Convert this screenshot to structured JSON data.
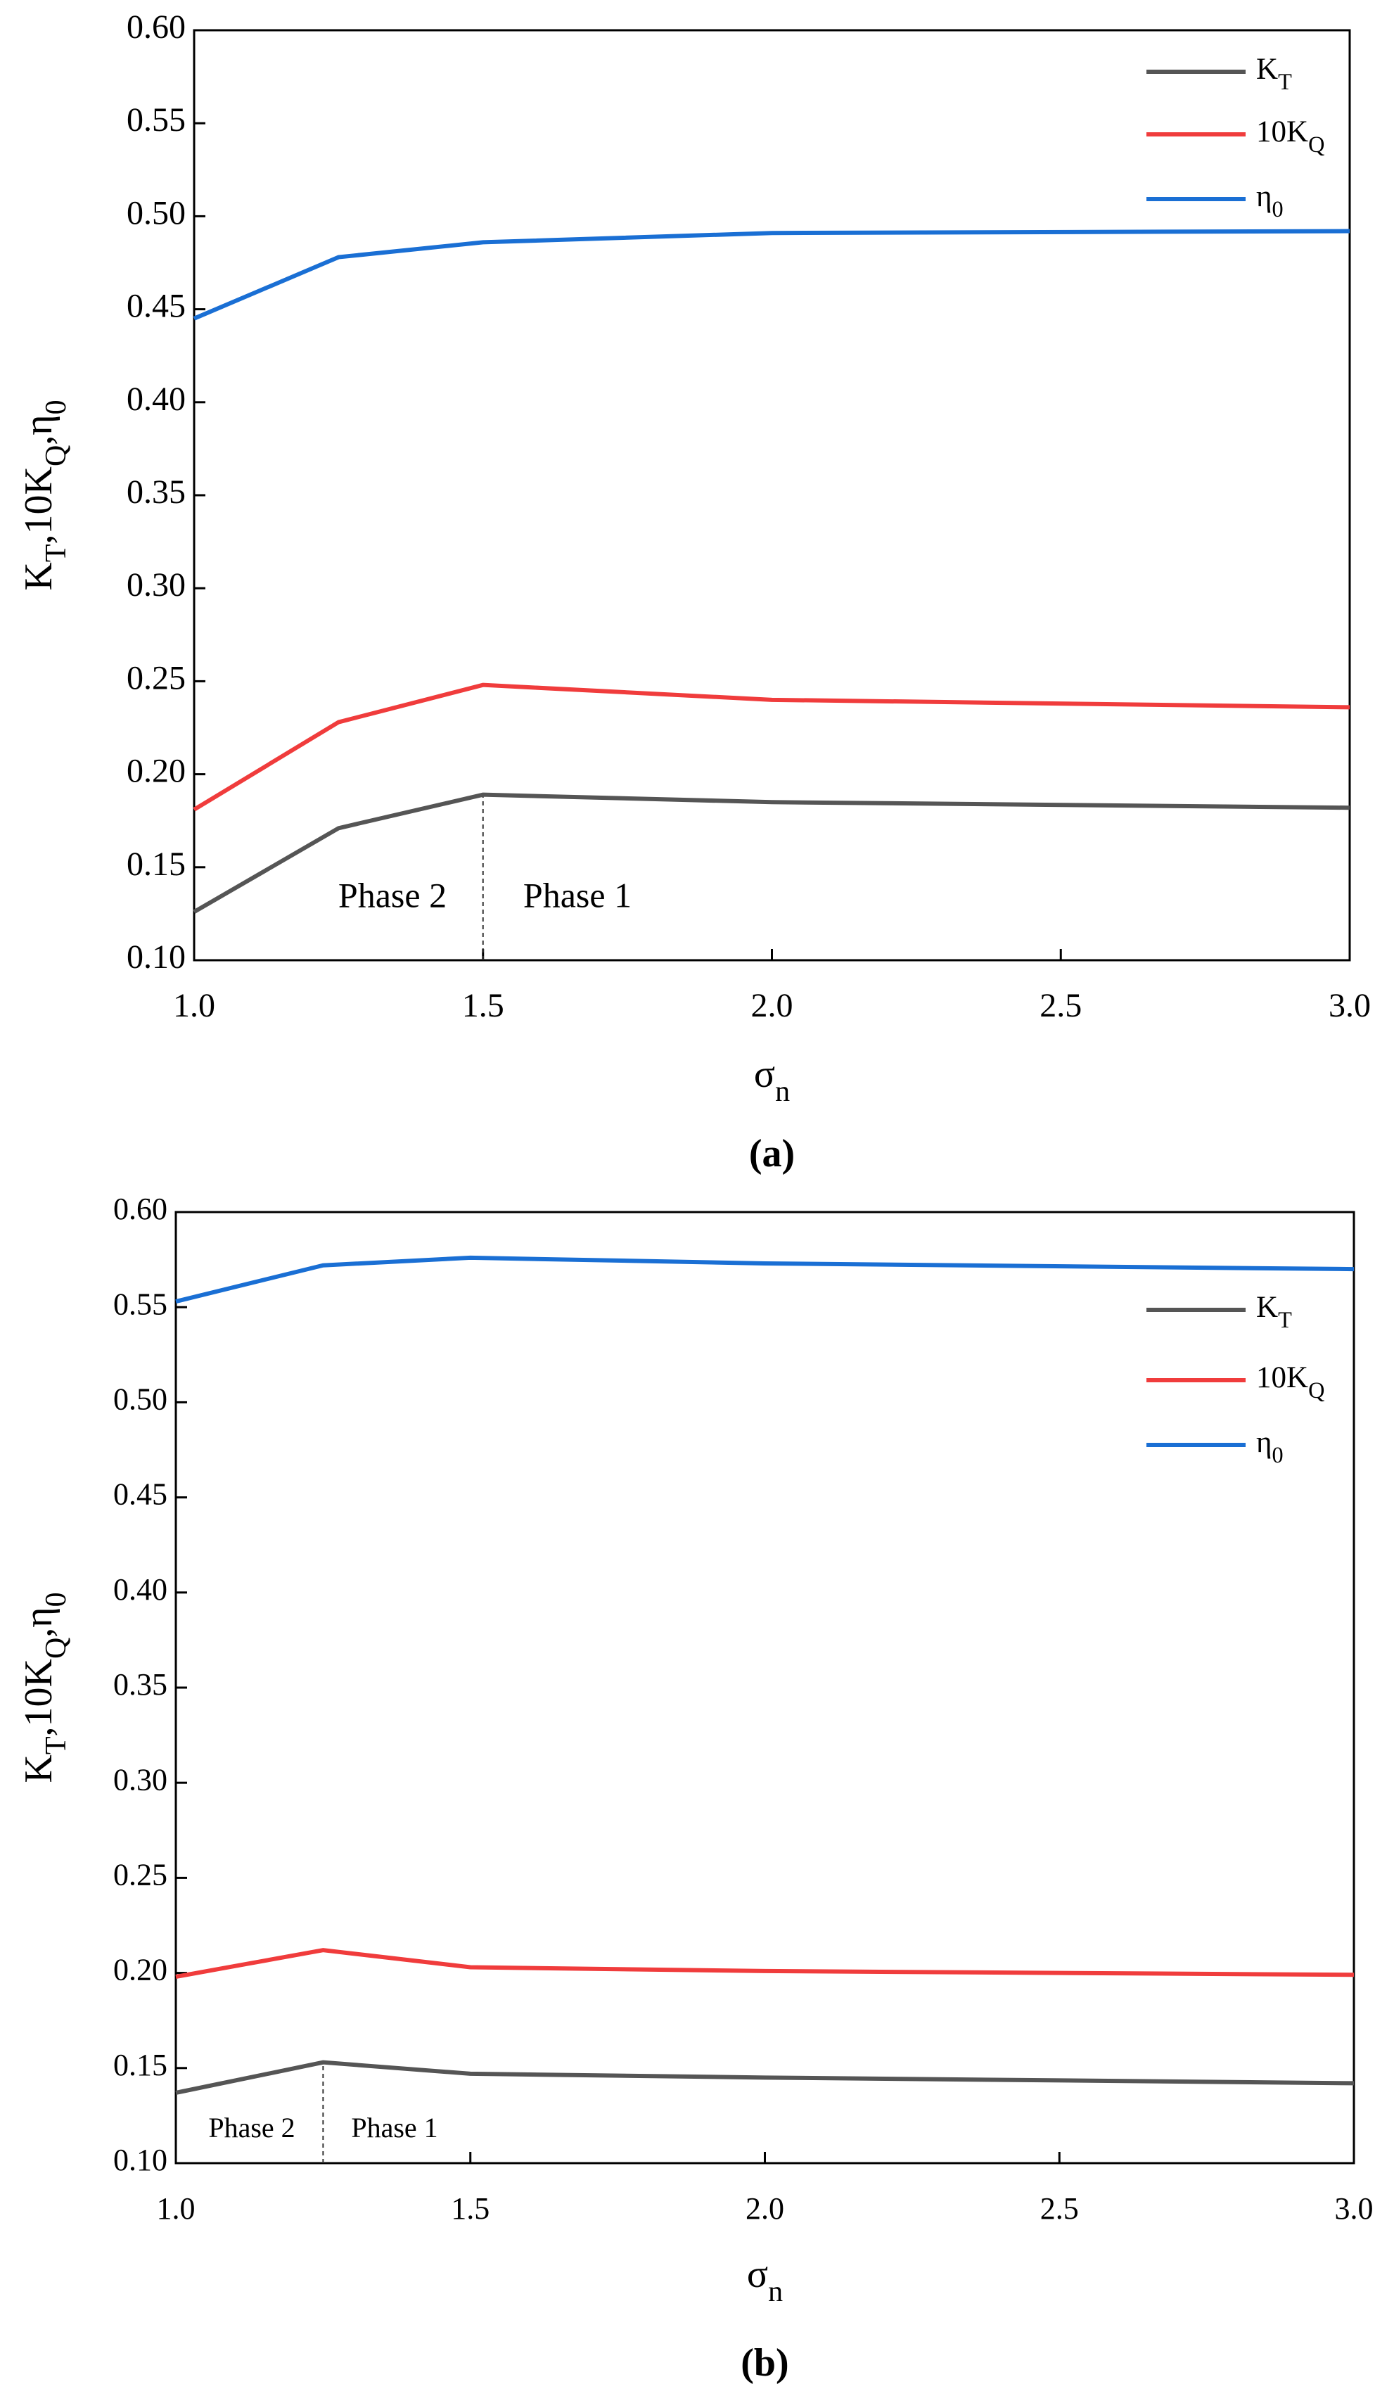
{
  "chart_data": [
    {
      "type": "line",
      "caption": "(a)",
      "xlabel": "σ_n",
      "ylabel": "K_T,10K_Q,η_0",
      "x": [
        1,
        1.25,
        1.5,
        2,
        3
      ],
      "series": [
        {
          "name": "K_T",
          "color": "#555555",
          "values": [
            0.126,
            0.171,
            0.189,
            0.185,
            0.182
          ]
        },
        {
          "name": "10K_Q",
          "color": "#f03c3c",
          "values": [
            0.181,
            0.228,
            0.248,
            0.24,
            0.236
          ]
        },
        {
          "name": "η_0",
          "color": "#1a6fd4",
          "values": [
            0.445,
            0.478,
            0.486,
            0.491,
            0.492
          ]
        }
      ],
      "xlim": [
        1,
        3
      ],
      "ylim": [
        0.1,
        0.6
      ],
      "xticks": [
        {
          "value": 1,
          "label": "1.0"
        },
        {
          "value": 1.5,
          "label": "1.5"
        },
        {
          "value": 2,
          "label": "2.0"
        },
        {
          "value": 2.5,
          "label": "2.5"
        },
        {
          "value": 3,
          "label": "3.0"
        }
      ],
      "yticks": [
        {
          "value": 0.1,
          "label": "0.10"
        },
        {
          "value": 0.15,
          "label": "0.15"
        },
        {
          "value": 0.2,
          "label": "0.20"
        },
        {
          "value": 0.25,
          "label": "0.25"
        },
        {
          "value": 0.3,
          "label": "0.30"
        },
        {
          "value": 0.35,
          "label": "0.35"
        },
        {
          "value": 0.4,
          "label": "0.40"
        },
        {
          "value": 0.45,
          "label": "0.45"
        },
        {
          "value": 0.5,
          "label": "0.50"
        },
        {
          "value": 0.55,
          "label": "0.55"
        },
        {
          "value": 0.6,
          "label": "0.60"
        }
      ],
      "annotations": [
        "Phase 2",
        "Phase 1"
      ],
      "legend": "upper right"
    },
    {
      "type": "line",
      "caption": "(b)",
      "xlabel": "σ_n",
      "ylabel": "K_T,10K_Q,η_0",
      "x": [
        1,
        1.25,
        1.5,
        2,
        3
      ],
      "series": [
        {
          "name": "K_T",
          "color": "#555555",
          "values": [
            0.137,
            0.153,
            0.147,
            0.145,
            0.142
          ]
        },
        {
          "name": "10K_Q",
          "color": "#f03c3c",
          "values": [
            0.198,
            0.212,
            0.203,
            0.201,
            0.199
          ]
        },
        {
          "name": "η_0",
          "color": "#1a6fd4",
          "values": [
            0.553,
            0.572,
            0.576,
            0.573,
            0.57
          ]
        }
      ],
      "xlim": [
        1,
        3
      ],
      "ylim": [
        0.1,
        0.6
      ],
      "xticks": [
        {
          "value": 1,
          "label": "1.0"
        },
        {
          "value": 1.5,
          "label": "1.5"
        },
        {
          "value": 2,
          "label": "2.0"
        },
        {
          "value": 2.5,
          "label": "2.5"
        },
        {
          "value": 3,
          "label": "3.0"
        }
      ],
      "yticks": [
        {
          "value": 0.1,
          "label": "0.10"
        },
        {
          "value": 0.15,
          "label": "0.15"
        },
        {
          "value": 0.2,
          "label": "0.20"
        },
        {
          "value": 0.25,
          "label": "0.25"
        },
        {
          "value": 0.3,
          "label": "0.30"
        },
        {
          "value": 0.35,
          "label": "0.35"
        },
        {
          "value": 0.4,
          "label": "0.40"
        },
        {
          "value": 0.45,
          "label": "0.45"
        },
        {
          "value": 0.5,
          "label": "0.50"
        },
        {
          "value": 0.55,
          "label": "0.55"
        },
        {
          "value": 0.6,
          "label": "0.60"
        }
      ],
      "annotations": [
        "Phase 2",
        "Phase 1"
      ],
      "legend": "upper right"
    }
  ]
}
